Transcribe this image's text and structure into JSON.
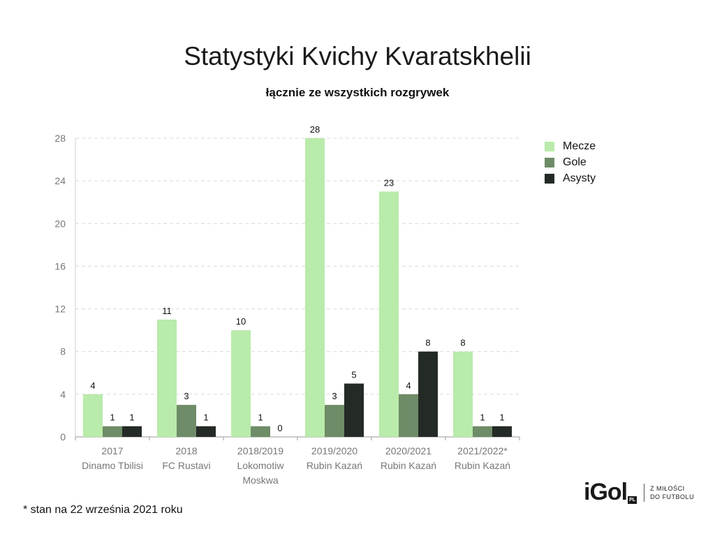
{
  "header": {
    "title": "Statystyki Kvichy Kvaratskhelii",
    "subtitle": "łącznie ze wszystkich rozgrywek"
  },
  "chart_data": {
    "type": "bar",
    "categories": [
      [
        "2017",
        "Dinamo Tbilisi"
      ],
      [
        "2018",
        "FC Rustavi"
      ],
      [
        "2018/2019",
        "Lokomotiw",
        "Moskwa"
      ],
      [
        "2019/2020",
        "Rubin Kazań"
      ],
      [
        "2020/2021",
        "Rubin Kazań"
      ],
      [
        "2021/2022*",
        "Rubin Kazań"
      ]
    ],
    "series": [
      {
        "name": "Mecze",
        "color": "#b9ebab",
        "values": [
          4,
          11,
          10,
          28,
          23,
          8
        ]
      },
      {
        "name": "Gole",
        "color": "#6e8c67",
        "values": [
          1,
          3,
          1,
          3,
          4,
          1
        ]
      },
      {
        "name": "Asysty",
        "color": "#242a25",
        "values": [
          1,
          1,
          0,
          5,
          8,
          1
        ]
      }
    ],
    "ylim": [
      0,
      28
    ],
    "yticks": [
      "0",
      "4",
      "8",
      "12",
      "16",
      "20",
      "24",
      "28"
    ],
    "grid": true,
    "legend_position": "right"
  },
  "footnote": "* stan na 22 września 2021 roku",
  "logo": {
    "word": "iGol",
    "badge": "PL",
    "tagline_line1": "Z MIŁOŚCI",
    "tagline_line2": "DO FUTBOLU"
  }
}
